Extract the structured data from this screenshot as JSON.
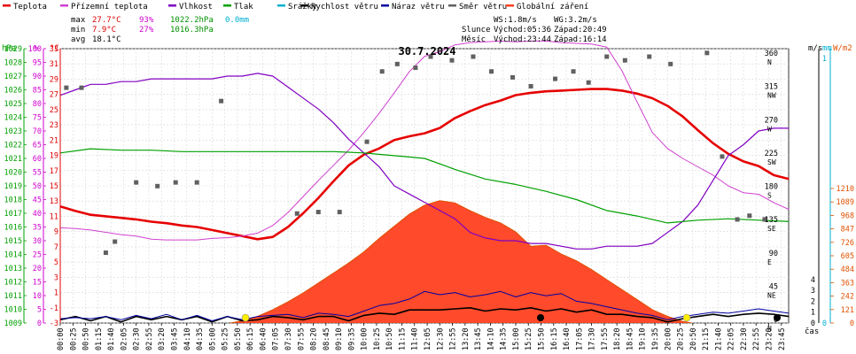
{
  "chart_data": {
    "type": "line",
    "title": "30.7.2024",
    "legend": {
      "placement": "top",
      "items": [
        {
          "label": "Teplota",
          "color": "#e60000"
        },
        {
          "label": "Přízemní teplota",
          "color": "#d040d0"
        },
        {
          "label": "Vlhkost",
          "color": "#8000c0"
        },
        {
          "label": "Tlak",
          "color": "#00a000"
        },
        {
          "label": "Srážky",
          "color": "#00b0d0"
        },
        {
          "label": "Rychlost větru",
          "color": "#000000"
        },
        {
          "label": "Náraz větru",
          "color": "#0000a0"
        },
        {
          "label": "Směr větru",
          "color": "#606060"
        },
        {
          "label": "Globální záření",
          "color": "#ff4020"
        }
      ]
    },
    "stats": {
      "max_label": "max",
      "min_label": "min",
      "avg_label": "avg",
      "temp_max": "27.7°C",
      "temp_min": "7.9°C",
      "temp_avg": "18.1°C",
      "hum_max": "93%",
      "hum_min": "27%",
      "press_max": "1022.2hPa",
      "press_min": "1016.3hPa",
      "rain": "0.0mm"
    },
    "info": {
      "ws": "WS:1.8m/s",
      "wg": "WG:3.2m/s",
      "sun_label": "Slunce",
      "sun_rise": "Východ:05:36",
      "sun_set": "Západ:20:49",
      "moon_label": "Měsíc",
      "moon_rise": "Východ:23:44",
      "moon_set": "Západ:16:14"
    },
    "axes": {
      "left": [
        {
          "unit": "hPa",
          "color": "#00a000",
          "ticks": [
            "1009",
            "1010",
            "1011",
            "1012",
            "1013",
            "1014",
            "1015",
            "1016",
            "1017",
            "1018",
            "1019",
            "1020",
            "1021",
            "1022",
            "1023",
            "1024",
            "1025",
            "1026",
            "1027",
            "1028",
            "1029"
          ]
        },
        {
          "unit": "%",
          "color": "#d000d0",
          "ticks": [
            "0",
            "5",
            "10",
            "15",
            "20",
            "25",
            "30",
            "35",
            "40",
            "45",
            "50",
            "55",
            "60",
            "65",
            "70",
            "75",
            "80",
            "85",
            "90",
            "95",
            "100"
          ]
        },
        {
          "unit": "°C",
          "color": "#e00000",
          "ticks": [
            "-3",
            "-1",
            "1",
            "3",
            "5",
            "7",
            "9",
            "11",
            "13",
            "15",
            "17",
            "19",
            "21",
            "23",
            "25",
            "27",
            "29",
            "31",
            "33"
          ]
        }
      ],
      "right": [
        {
          "unit": "m/s",
          "color": "#000000",
          "ticks": [
            "0",
            "1",
            "2",
            "3",
            "4"
          ]
        },
        {
          "unit": "mm",
          "color": "#00b0d0",
          "ticks": [
            "0",
            "1"
          ]
        },
        {
          "unit": "W/m2",
          "color": "#e05000",
          "ticks": [
            "0",
            "121",
            "242",
            "363",
            "484",
            "605",
            "726",
            "847",
            "968",
            "1089",
            "1210"
          ]
        },
        {
          "unit": "°",
          "color": "#000000",
          "ticks": [
            "0",
            "45",
            "90",
            "135",
            "180",
            "225",
            "270",
            "315",
            "360"
          ],
          "dirs": [
            "N",
            "NE",
            "E",
            "SE",
            "S",
            "SW",
            "W",
            "NW",
            "N"
          ]
        }
      ],
      "x_unit": "čas",
      "x_ticks": [
        "00:00",
        "00:25",
        "00:50",
        "01:15",
        "01:40",
        "02:05",
        "02:30",
        "02:55",
        "03:20",
        "03:45",
        "04:10",
        "04:35",
        "05:00",
        "05:25",
        "05:50",
        "06:15",
        "06:40",
        "07:05",
        "07:30",
        "07:55",
        "08:20",
        "08:45",
        "09:10",
        "09:35",
        "10:00",
        "10:25",
        "10:50",
        "11:15",
        "11:40",
        "12:05",
        "12:30",
        "12:55",
        "13:20",
        "13:45",
        "14:10",
        "14:35",
        "15:00",
        "15:25",
        "15:50",
        "16:15",
        "16:40",
        "17:05",
        "17:30",
        "17:55",
        "18:20",
        "18:45",
        "19:10",
        "19:35",
        "20:00",
        "20:25",
        "20:50",
        "21:15",
        "21:40",
        "22:05",
        "22:30",
        "22:55",
        "23:20",
        "23:45"
      ],
      "grid": true
    },
    "series": [
      {
        "name": "Teplota",
        "unit": "°C",
        "color": "#e60000",
        "x": [
          0,
          0.5,
          1,
          1.5,
          2,
          2.5,
          3,
          3.5,
          4,
          4.5,
          5,
          5.5,
          6,
          6.5,
          7,
          7.5,
          8,
          8.5,
          9,
          9.5,
          10,
          10.5,
          11,
          11.5,
          12,
          12.5,
          13,
          13.5,
          14,
          14.5,
          15,
          15.5,
          16,
          16.5,
          17,
          17.5,
          18,
          18.5,
          19,
          19.5,
          20,
          20.5,
          21,
          21.5,
          22,
          22.5,
          23,
          23.5,
          24
        ],
        "y": [
          12.3,
          11.7,
          11.2,
          11.0,
          10.8,
          10.6,
          10.3,
          10.1,
          9.8,
          9.6,
          9.2,
          8.8,
          8.4,
          8.0,
          8.3,
          9.6,
          11.4,
          13.4,
          15.6,
          17.7,
          19.1,
          19.9,
          21.0,
          21.5,
          21.9,
          22.6,
          23.9,
          24.8,
          25.6,
          26.2,
          26.9,
          27.2,
          27.4,
          27.5,
          27.6,
          27.7,
          27.7,
          27.5,
          27.1,
          26.5,
          25.5,
          24.1,
          22.3,
          20.6,
          19.2,
          18.2,
          17.6,
          16.4,
          15.9
        ]
      },
      {
        "name": "Přízemní teplota",
        "unit": "°C",
        "color": "#d040d0",
        "x": [
          0,
          0.5,
          1,
          1.5,
          2,
          2.5,
          3,
          3.5,
          4,
          4.5,
          5,
          5.5,
          6,
          6.5,
          7,
          7.5,
          8,
          8.5,
          9,
          9.5,
          10,
          10.5,
          11,
          11.5,
          12,
          12.5,
          13,
          13.5,
          14,
          14.5,
          15,
          15.5,
          16,
          16.5,
          17,
          17.5,
          18,
          18.5,
          19,
          19.5,
          20,
          20.5,
          21,
          21.5,
          22,
          22.5,
          23,
          23.5,
          24
        ],
        "y": [
          9.5,
          9.4,
          9.2,
          8.9,
          8.6,
          8.4,
          8.0,
          7.9,
          7.9,
          7.9,
          8.1,
          8.2,
          8.4,
          8.8,
          9.8,
          11.5,
          13.6,
          15.7,
          17.7,
          19.7,
          22.0,
          24.5,
          27.2,
          30.0,
          32.0,
          32.6,
          33.5,
          33.8,
          33.9,
          34.0,
          33.9,
          34.0,
          34.0,
          33.8,
          33.7,
          33.6,
          33.2,
          30.1,
          26.0,
          22.0,
          19.9,
          18.6,
          17.5,
          16.4,
          15.0,
          14.1,
          13.9,
          12.8,
          11.9
        ]
      },
      {
        "name": "Vlhkost",
        "unit": "%",
        "color": "#8000c0",
        "x": [
          0,
          0.5,
          1,
          1.5,
          2,
          2.5,
          3,
          3.5,
          4,
          4.5,
          5,
          5.5,
          6,
          6.5,
          7,
          7.5,
          8,
          8.5,
          9,
          9.5,
          10,
          10.5,
          11,
          11.5,
          12,
          12.5,
          13,
          13.5,
          14,
          14.5,
          15,
          15.5,
          16,
          16.5,
          17,
          17.5,
          18,
          18.5,
          19,
          19.5,
          20,
          20.5,
          21,
          21.5,
          22,
          22.5,
          23,
          23.5,
          24
        ],
        "y": [
          83,
          85,
          87,
          87,
          88,
          88,
          89,
          89,
          89,
          89,
          89,
          90,
          90,
          91,
          90,
          86,
          82,
          78,
          73,
          67,
          62,
          57,
          50,
          47,
          44,
          41,
          38,
          33,
          31,
          30,
          30,
          29,
          29,
          28,
          27,
          27,
          28,
          28,
          28,
          29,
          33,
          37,
          43,
          52,
          61,
          65,
          70,
          71,
          71
        ]
      },
      {
        "name": "Tlak",
        "unit": "hPa",
        "color": "#00a000",
        "x": [
          0,
          1,
          2,
          3,
          4,
          5,
          6,
          7,
          8,
          9,
          10,
          10.5,
          11,
          11.5,
          12,
          13,
          14,
          15,
          16,
          17,
          18,
          19,
          20,
          21,
          22,
          23,
          24
        ],
        "y": [
          1021.4,
          1021.7,
          1021.6,
          1021.6,
          1021.5,
          1021.5,
          1021.5,
          1021.5,
          1021.5,
          1021.5,
          1021.4,
          1021.3,
          1021.2,
          1021.1,
          1021.0,
          1020.2,
          1019.5,
          1019.1,
          1018.6,
          1018.0,
          1017.2,
          1016.8,
          1016.3,
          1016.5,
          1016.6,
          1016.5,
          1016.4
        ]
      },
      {
        "name": "Rychlost větru",
        "unit": "m/s",
        "color": "#000000",
        "x": [
          0,
          0.5,
          1,
          1.5,
          2,
          2.5,
          3,
          3.5,
          4,
          4.5,
          5,
          5.5,
          6,
          6.5,
          7,
          7.5,
          8,
          8.5,
          9,
          9.5,
          10,
          10.5,
          11,
          11.5,
          12,
          12.5,
          13,
          13.5,
          14,
          14.5,
          15,
          15.5,
          16,
          16.5,
          17,
          17.5,
          18,
          18.5,
          19,
          19.5,
          20,
          20.5,
          21,
          21.5,
          22,
          22.5,
          23,
          23.5,
          24
        ],
        "y": [
          0.3,
          0.6,
          0.2,
          0.6,
          0.1,
          0.6,
          0.3,
          0.6,
          0.3,
          0.6,
          0.1,
          0.6,
          0.2,
          0.3,
          0.6,
          0.5,
          0.3,
          0.6,
          0.6,
          0.2,
          0.7,
          0.9,
          0.8,
          1.2,
          1.2,
          1.2,
          1.3,
          1.4,
          1.1,
          1.3,
          1.2,
          1.4,
          1.1,
          1.3,
          1.0,
          1.2,
          0.8,
          0.8,
          0.6,
          0.5,
          0.1,
          0.4,
          0.6,
          0.8,
          0.6,
          0.8,
          0.9,
          0.8,
          0.6
        ]
      },
      {
        "name": "Náraz větru",
        "unit": "m/s",
        "color": "#0000a0",
        "x": [
          0,
          0.5,
          1,
          1.5,
          2,
          2.5,
          3,
          3.5,
          4,
          4.5,
          5,
          5.5,
          6,
          6.5,
          7,
          7.5,
          8,
          8.5,
          9,
          9.5,
          10,
          10.5,
          11,
          11.5,
          12,
          12.5,
          13,
          13.5,
          14,
          14.5,
          15,
          15.5,
          16,
          16.5,
          17,
          17.5,
          18,
          18.5,
          19,
          19.5,
          20,
          20.5,
          21,
          21.5,
          22,
          22.5,
          23,
          23.5,
          24
        ],
        "y": [
          0.4,
          0.5,
          0.4,
          0.6,
          0.3,
          0.7,
          0.4,
          0.8,
          0.3,
          0.7,
          0.2,
          0.6,
          0.3,
          0.6,
          0.7,
          0.8,
          0.5,
          0.9,
          0.8,
          0.6,
          1.1,
          1.6,
          1.8,
          2.2,
          2.9,
          2.6,
          2.8,
          2.4,
          2.6,
          2.9,
          2.4,
          2.8,
          2.5,
          2.7,
          2.0,
          1.8,
          1.5,
          1.2,
          0.9,
          0.7,
          0.3,
          0.6,
          0.8,
          1.0,
          0.9,
          1.1,
          1.3,
          1.1,
          0.9
        ]
      },
      {
        "name": "Směr větru",
        "unit": "°",
        "color": "#606060",
        "x": [
          0.2,
          0.7,
          1.5,
          1.8,
          2.5,
          3.2,
          3.8,
          4.5,
          5.3,
          7.8,
          8.5,
          9.2,
          10.1,
          10.6,
          11.1,
          11.7,
          12.2,
          12.9,
          13.6,
          14.2,
          14.9,
          15.5,
          16.3,
          16.9,
          17.4,
          18.0,
          18.6,
          19.4,
          20.1,
          21.3,
          21.8,
          22.3,
          22.7,
          23.2
        ],
        "y": [
          318,
          318,
          95,
          110,
          190,
          185,
          190,
          190,
          300,
          148,
          150,
          150,
          245,
          340,
          350,
          345,
          360,
          355,
          360,
          340,
          332,
          320,
          330,
          340,
          325,
          360,
          355,
          360,
          350,
          365,
          225,
          140,
          145,
          140
        ]
      },
      {
        "name": "Globální záření",
        "unit": "W/m2",
        "color": "#ff4020",
        "x": [
          5.6,
          6,
          6.5,
          7,
          7.5,
          8,
          8.5,
          9,
          9.5,
          10,
          10.5,
          11,
          11.5,
          12,
          12.5,
          13,
          13.5,
          14,
          14.5,
          15,
          15.5,
          16,
          16.5,
          17,
          17.5,
          18,
          18.5,
          19,
          19.5,
          20,
          20.5,
          20.8
        ],
        "y": [
          0,
          20,
          60,
          120,
          190,
          270,
          360,
          450,
          540,
          640,
          760,
          870,
          980,
          1060,
          1100,
          1080,
          1010,
          950,
          900,
          820,
          690,
          700,
          620,
          560,
          480,
          390,
          300,
          210,
          120,
          60,
          15,
          0
        ]
      }
    ]
  }
}
